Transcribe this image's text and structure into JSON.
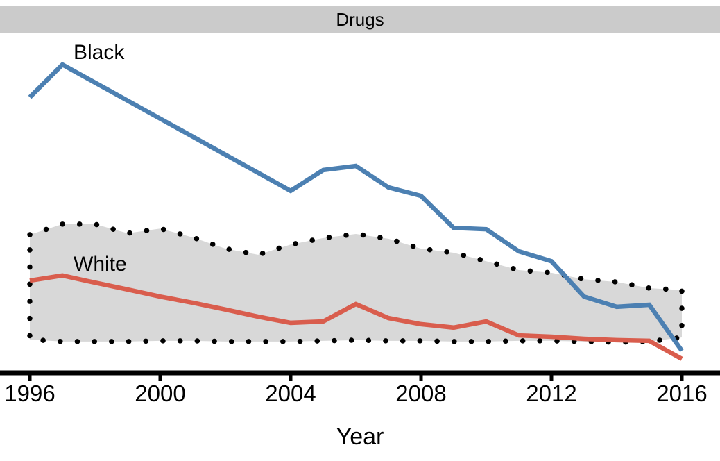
{
  "facet_strip": {
    "background": "#cbcbcb"
  },
  "chart_data": {
    "type": "line",
    "title": "Drugs",
    "xlabel": "Year",
    "ylabel": "",
    "x": [
      1996,
      1997,
      1998,
      1999,
      2000,
      2001,
      2002,
      2003,
      2004,
      2005,
      2006,
      2007,
      2008,
      2009,
      2010,
      2011,
      2012,
      2013,
      2014,
      2015,
      2016
    ],
    "x_ticks": [
      1996,
      2000,
      2004,
      2008,
      2012,
      2016
    ],
    "xlim": [
      1996,
      2016
    ],
    "ylim": [
      0,
      100
    ],
    "y_scale_note": "relative scale 0-100 of plot height; the figure shows no y-axis ticks or labels",
    "grid": "off",
    "legend": "direct line labels (no legend box)",
    "series": [
      {
        "name": "Black",
        "color": "#4c80b2",
        "values": [
          80.6,
          90.2,
          84.9,
          79.6,
          74.3,
          69.0,
          63.7,
          58.4,
          53.1,
          59.2,
          60.4,
          54.1,
          51.6,
          42.2,
          41.8,
          35.3,
          32.4,
          22.0,
          19.0,
          19.6,
          6.1
        ]
      },
      {
        "name": "White",
        "color": "#d95d4d",
        "values": [
          26.7,
          28.2,
          26.1,
          24.1,
          22.0,
          20.2,
          18.2,
          16.1,
          14.3,
          14.7,
          19.8,
          15.7,
          13.9,
          12.9,
          14.7,
          10.6,
          10.2,
          9.6,
          9.2,
          9.0,
          3.7
        ]
      }
    ],
    "band": {
      "name": "shaded-range-band",
      "fill": "#d8d8d8",
      "outline_style": "dotted",
      "dot_color": "#000000",
      "upper": [
        40.2,
        43.3,
        43.3,
        40.6,
        42.0,
        39.4,
        36.1,
        34.3,
        37.3,
        39.2,
        40.4,
        39.0,
        36.1,
        34.9,
        32.4,
        29.8,
        29.0,
        27.1,
        26.3,
        24.5,
        23.9
      ],
      "lower": [
        9.4,
        8.8,
        8.8,
        8.8,
        9.0,
        9.0,
        8.8,
        8.8,
        8.8,
        9.0,
        9.2,
        9.0,
        9.0,
        8.8,
        8.8,
        9.0,
        9.0,
        8.8,
        8.6,
        8.8,
        10.0
      ]
    },
    "axis_color": "#000000"
  }
}
